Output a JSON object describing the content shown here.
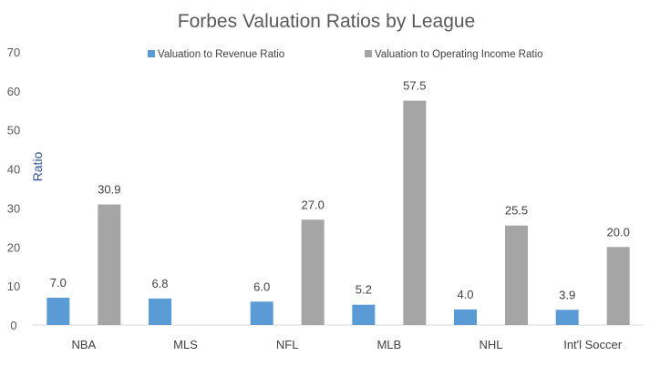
{
  "chart_data": {
    "type": "bar",
    "title": "Forbes Valuation Ratios by League",
    "xlabel": "",
    "ylabel": "Ratio",
    "ylim": [
      0,
      70
    ],
    "yticks": [
      0,
      10,
      20,
      30,
      40,
      50,
      60,
      70
    ],
    "grid": false,
    "legend_position": "top",
    "categories": [
      "NBA",
      "MLS",
      "NFL",
      "MLB",
      "NHL",
      "Int'l Soccer"
    ],
    "series": [
      {
        "name": "Valuation to Revenue Ratio",
        "color": "#5b9bd5",
        "values": [
          7.0,
          6.8,
          6.0,
          5.2,
          4.0,
          3.9
        ],
        "labels": [
          "7.0",
          "6.8",
          "6.0",
          "5.2",
          "4.0",
          "3.9"
        ]
      },
      {
        "name": "Valuation to Operating Income Ratio",
        "color": "#a5a5a5",
        "values": [
          30.9,
          null,
          27.0,
          57.5,
          25.5,
          20.0
        ],
        "labels": [
          "30.9",
          null,
          "27.0",
          "57.5",
          "25.5",
          "20.0"
        ]
      }
    ],
    "axis_color": "#d9d9d9"
  }
}
